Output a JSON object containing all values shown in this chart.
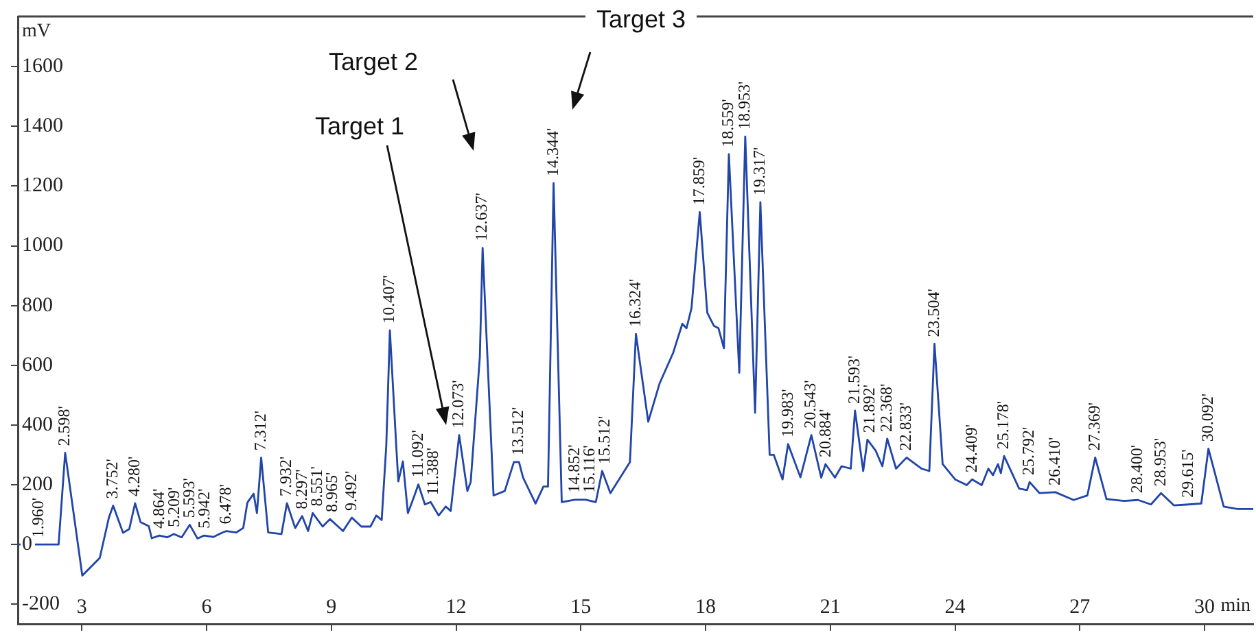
{
  "chart_data": {
    "type": "line",
    "xlabel": "min",
    "ylabel": "mV",
    "xlim": [
      1.46,
      31.17
    ],
    "ylim": [
      -266,
      1768
    ],
    "xticks": [
      3,
      6,
      9,
      12,
      15,
      18,
      21,
      24,
      27,
      30
    ],
    "yticks": [
      -200,
      0,
      200,
      400,
      600,
      800,
      1000,
      1200,
      1400,
      1600
    ],
    "grid": false,
    "legend": false,
    "marker": "none",
    "line_style": "solid",
    "x": [
      1.46,
      2.44,
      2.598,
      3.01,
      3.43,
      3.65,
      3.752,
      3.99,
      4.14,
      4.28,
      4.41,
      4.61,
      4.68,
      4.864,
      5.05,
      5.209,
      5.4,
      5.593,
      5.78,
      5.942,
      6.16,
      6.38,
      6.478,
      6.71,
      6.88,
      6.98,
      7.13,
      7.21,
      7.312,
      7.48,
      7.8,
      7.932,
      8.13,
      8.297,
      8.44,
      8.551,
      8.79,
      8.965,
      9.28,
      9.492,
      9.72,
      9.94,
      10.08,
      10.21,
      10.32,
      10.407,
      10.56,
      10.61,
      10.72,
      10.84,
      10.98,
      11.092,
      11.25,
      11.388,
      11.58,
      11.75,
      11.87,
      12.073,
      12.27,
      12.35,
      12.57,
      12.637,
      12.9,
      13.17,
      13.39,
      13.512,
      13.61,
      13.91,
      14.1,
      14.21,
      14.344,
      14.54,
      14.852,
      15.116,
      15.36,
      15.512,
      15.71,
      15.91,
      16.18,
      16.324,
      16.62,
      16.89,
      17.22,
      17.44,
      17.54,
      17.66,
      17.859,
      18.04,
      18.2,
      18.31,
      18.44,
      18.559,
      18.81,
      18.953,
      19.19,
      19.317,
      19.54,
      19.64,
      19.85,
      19.983,
      20.28,
      20.543,
      20.78,
      20.884,
      21.11,
      21.27,
      21.49,
      21.593,
      21.79,
      21.892,
      22.09,
      22.25,
      22.368,
      22.58,
      22.833,
      23.19,
      23.38,
      23.504,
      23.7,
      24.0,
      24.28,
      24.409,
      24.64,
      24.8,
      24.91,
      25.03,
      25.1,
      25.178,
      25.54,
      25.73,
      25.792,
      26.03,
      26.41,
      26.85,
      27.18,
      27.369,
      27.64,
      28.06,
      28.4,
      28.71,
      28.953,
      29.26,
      29.615,
      29.92,
      30.092,
      30.46,
      30.79,
      31.17
    ],
    "series": [
      {
        "color": "#2145a8",
        "values": [
          0,
          0,
          307,
          -104,
          -45,
          90,
          130,
          39,
          52,
          138,
          75,
          61,
          21,
          30,
          24,
          35,
          24,
          66,
          20,
          30,
          25,
          40,
          45,
          40,
          55,
          140,
          170,
          105,
          291,
          40,
          35,
          138,
          55,
          95,
          45,
          105,
          60,
          85,
          45,
          90,
          60,
          60,
          97,
          82,
          330,
          717,
          330,
          211,
          278,
          105,
          157,
          201,
          134,
          142,
          97,
          127,
          112,
          366,
          179,
          209,
          627,
          993,
          164,
          179,
          276,
          276,
          224,
          137,
          194,
          194,
          1210,
          142,
          150,
          150,
          142,
          246,
          172,
          216,
          276,
          705,
          411,
          538,
          642,
          739,
          724,
          791,
          1113,
          776,
          732,
          724,
          657,
          1307,
          575,
          1366,
          441,
          1146,
          300,
          300,
          218,
          336,
          225,
          366,
          224,
          269,
          224,
          262,
          254,
          448,
          246,
          351,
          314,
          262,
          354,
          254,
          291,
          254,
          246,
          672,
          269,
          218,
          199,
          218,
          199,
          254,
          232,
          269,
          239,
          296,
          187,
          182,
          209,
          172,
          175,
          149,
          164,
          291,
          152,
          146,
          149,
          134,
          172,
          131,
          134,
          137,
          321,
          127,
          119,
          119
        ]
      }
    ],
    "annotations": [
      "Target 1",
      "Target 2",
      "Target 3",
      {
        "text": "1.960'",
        "x": 1.96,
        "y": 0
      },
      {
        "text": "2.598'",
        "x": 2.598,
        "y": 307
      },
      {
        "text": "3.752'",
        "x": 3.752,
        "y": 130
      },
      {
        "text": "4.280'",
        "x": 4.28,
        "y": 138
      },
      {
        "text": "4.864'",
        "x": 4.864,
        "y": 30
      },
      {
        "text": "5.209'",
        "x": 5.209,
        "y": 35
      },
      {
        "text": "5.593'",
        "x": 5.593,
        "y": 66
      },
      {
        "text": "5.942'",
        "x": 5.942,
        "y": 30
      },
      {
        "text": "6.478'",
        "x": 6.478,
        "y": 45
      },
      {
        "text": "7.312'",
        "x": 7.312,
        "y": 291
      },
      {
        "text": "7.932'",
        "x": 7.932,
        "y": 138
      },
      {
        "text": "8.297'",
        "x": 8.297,
        "y": 95
      },
      {
        "text": "8.551'",
        "x": 8.551,
        "y": 105
      },
      {
        "text": "8.965'",
        "x": 8.965,
        "y": 85
      },
      {
        "text": "9.492'",
        "x": 9.492,
        "y": 90
      },
      {
        "text": "10.407'",
        "x": 10.407,
        "y": 717
      },
      {
        "text": "11.092'",
        "x": 11.092,
        "y": 201
      },
      {
        "text": "11.388'",
        "x": 11.388,
        "y": 142
      },
      {
        "text": "12.073'",
        "x": 12.073,
        "y": 366
      },
      {
        "text": "12.637'",
        "x": 12.637,
        "y": 993
      },
      {
        "text": "13.512'",
        "x": 13.512,
        "y": 276
      },
      {
        "text": "14.344'",
        "x": 14.344,
        "y": 1210
      },
      {
        "text": "14.852'",
        "x": 14.852,
        "y": 150
      },
      {
        "text": "15.116'",
        "x": 15.116,
        "y": 150
      },
      {
        "text": "15.512'",
        "x": 15.512,
        "y": 246
      },
      {
        "text": "16.324'",
        "x": 16.324,
        "y": 705
      },
      {
        "text": "17.859'",
        "x": 17.859,
        "y": 1113
      },
      {
        "text": "18.559'",
        "x": 18.559,
        "y": 1307
      },
      {
        "text": "18.953'",
        "x": 18.953,
        "y": 1366
      },
      {
        "text": "19.317'",
        "x": 19.317,
        "y": 1146
      },
      {
        "text": "19.983'",
        "x": 19.983,
        "y": 336
      },
      {
        "text": "20.543'",
        "x": 20.543,
        "y": 366
      },
      {
        "text": "20.884'",
        "x": 20.884,
        "y": 269
      },
      {
        "text": "21.593'",
        "x": 21.593,
        "y": 448
      },
      {
        "text": "21.892'",
        "x": 21.892,
        "y": 351
      },
      {
        "text": "22.368'",
        "x": 22.368,
        "y": 354
      },
      {
        "text": "22.833'",
        "x": 22.833,
        "y": 291
      },
      {
        "text": "23.504'",
        "x": 23.504,
        "y": 672
      },
      {
        "text": "24.409'",
        "x": 24.409,
        "y": 218
      },
      {
        "text": "25.178'",
        "x": 25.178,
        "y": 296
      },
      {
        "text": "25.792'",
        "x": 25.792,
        "y": 209
      },
      {
        "text": "26.410'",
        "x": 26.41,
        "y": 175
      },
      {
        "text": "27.369'",
        "x": 27.369,
        "y": 291
      },
      {
        "text": "28.400'",
        "x": 28.4,
        "y": 149
      },
      {
        "text": "28.953'",
        "x": 28.953,
        "y": 172
      },
      {
        "text": "29.615'",
        "x": 29.615,
        "y": 134
      },
      {
        "text": "30.092'",
        "x": 30.092,
        "y": 321
      }
    ]
  }
}
